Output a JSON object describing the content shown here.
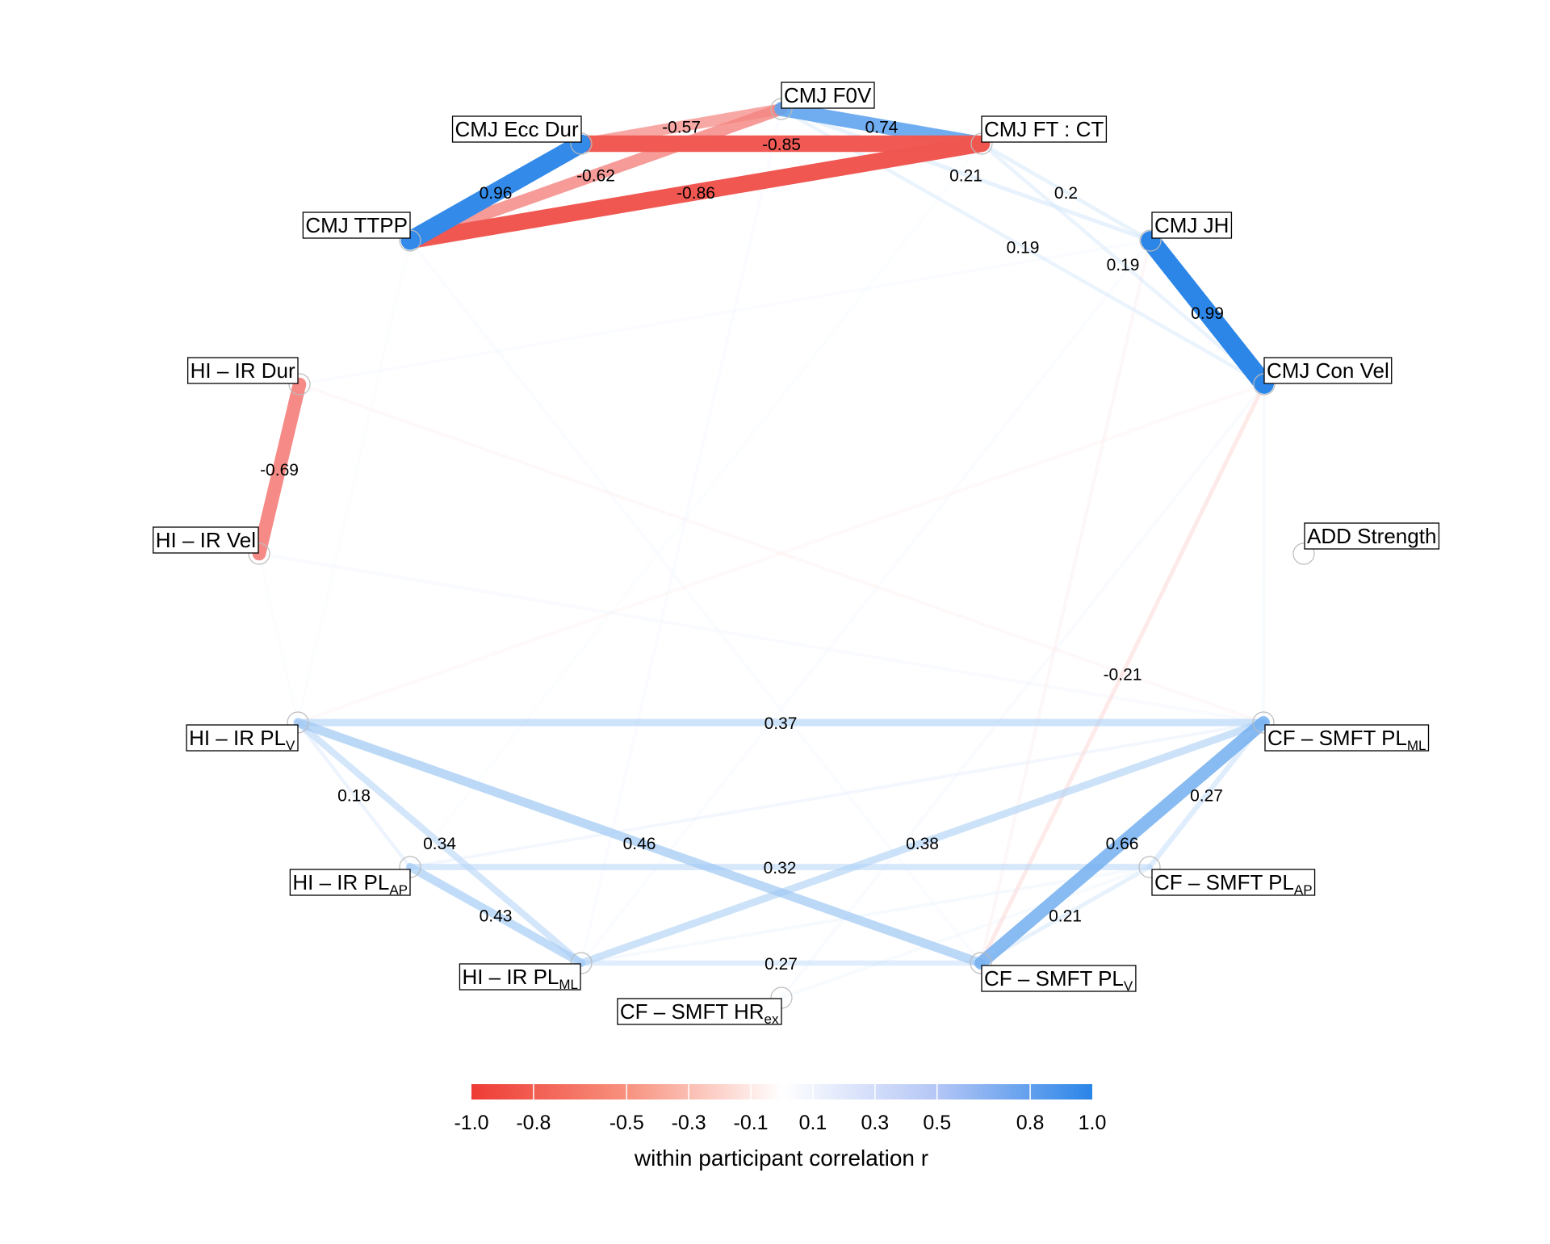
{
  "chart_data": {
    "type": "network",
    "title": "",
    "legend": {
      "title": "within participant correlation r",
      "ticks": [
        "-1.0",
        "-0.8",
        "-0.5",
        "-0.3",
        "-0.1",
        "0.1",
        "0.3",
        "0.5",
        "0.8",
        "1.0"
      ],
      "range": [
        -1,
        1
      ],
      "placement": "bottom",
      "colors": {
        "negative": "#EE3B34",
        "zero": "#FFFFFF",
        "positive": "#2A85E8"
      }
    },
    "nodes": [
      {
        "id": "f0v",
        "name": "CMJ F0V",
        "sub": ""
      },
      {
        "id": "ftct",
        "name": "CMJ FT : CT",
        "sub": ""
      },
      {
        "id": "eccdur",
        "name": "CMJ Ecc Dur",
        "sub": ""
      },
      {
        "id": "ttpp",
        "name": "CMJ TTPP",
        "sub": ""
      },
      {
        "id": "jh",
        "name": "CMJ JH",
        "sub": ""
      },
      {
        "id": "convel",
        "name": "CMJ Con Vel",
        "sub": ""
      },
      {
        "id": "hidur",
        "name": "HI – IR Dur",
        "sub": ""
      },
      {
        "id": "hivel",
        "name": "HI – IR Vel",
        "sub": ""
      },
      {
        "id": "add",
        "name": "ADD Strength",
        "sub": ""
      },
      {
        "id": "hiplv",
        "name": "HI – IR PL",
        "sub": "V"
      },
      {
        "id": "cfplml",
        "name": "CF – SMFT PL",
        "sub": "ML"
      },
      {
        "id": "hiplap",
        "name": "HI – IR PL",
        "sub": "AP"
      },
      {
        "id": "cfplap",
        "name": "CF – SMFT PL",
        "sub": "AP"
      },
      {
        "id": "hiplml",
        "name": "HI – IR PL",
        "sub": "ML"
      },
      {
        "id": "cfplv",
        "name": "CF – SMFT PL",
        "sub": "V"
      },
      {
        "id": "hrex",
        "name": "CF – SMFT HR",
        "sub": "ex"
      }
    ],
    "edges": [
      {
        "from": "eccdur",
        "to": "ttpp",
        "r": 0.96,
        "label": "0.96"
      },
      {
        "from": "f0v",
        "to": "eccdur",
        "r": -0.57,
        "label": "-0.57"
      },
      {
        "from": "f0v",
        "to": "ftct",
        "r": 0.74,
        "label": "0.74"
      },
      {
        "from": "ftct",
        "to": "eccdur",
        "r": -0.85,
        "label": "-0.85"
      },
      {
        "from": "f0v",
        "to": "ttpp",
        "r": -0.62,
        "label": "-0.62"
      },
      {
        "from": "ftct",
        "to": "ttpp",
        "r": -0.86,
        "label": "-0.86"
      },
      {
        "from": "jh",
        "to": "convel",
        "r": 0.99,
        "label": "0.99"
      },
      {
        "from": "hidur",
        "to": "hivel",
        "r": -0.69,
        "label": "-0.69"
      },
      {
        "from": "f0v",
        "to": "jh",
        "r": 0.21,
        "label": "0.21"
      },
      {
        "from": "ftct",
        "to": "jh",
        "r": 0.2,
        "label": "0.2"
      },
      {
        "from": "f0v",
        "to": "convel",
        "r": 0.19,
        "label": "0.19"
      },
      {
        "from": "ftct",
        "to": "convel",
        "r": 0.19,
        "label": "0.19"
      },
      {
        "from": "convel",
        "to": "cfplv",
        "r": -0.21,
        "label": "-0.21"
      },
      {
        "from": "hiplv",
        "to": "cfplml",
        "r": 0.37,
        "label": "0.37"
      },
      {
        "from": "hiplv",
        "to": "hiplap",
        "r": 0.18,
        "label": "0.18"
      },
      {
        "from": "hiplv",
        "to": "hiplml",
        "r": 0.34,
        "label": "0.34"
      },
      {
        "from": "hiplap",
        "to": "hiplml",
        "r": 0.43,
        "label": "0.43"
      },
      {
        "from": "hiplv",
        "to": "cfplv",
        "r": 0.46,
        "label": "0.46"
      },
      {
        "from": "hiplap",
        "to": "cfplap",
        "r": 0.32,
        "label": "0.32"
      },
      {
        "from": "hiplml",
        "to": "cfplml",
        "r": 0.38,
        "label": "0.38"
      },
      {
        "from": "hiplml",
        "to": "cfplv",
        "r": 0.27,
        "label": "0.27"
      },
      {
        "from": "cfplml",
        "to": "cfplap",
        "r": 0.27,
        "label": "0.27"
      },
      {
        "from": "cfplml",
        "to": "cfplv",
        "r": 0.66,
        "label": "0.66"
      },
      {
        "from": "cfplap",
        "to": "cfplv",
        "r": 0.21,
        "label": "0.21"
      },
      {
        "from": "jh",
        "to": "cfplv",
        "r": -0.1,
        "label": ""
      },
      {
        "from": "hidur",
        "to": "cfplml",
        "r": -0.08,
        "label": ""
      },
      {
        "from": "convel",
        "to": "hiplv",
        "r": -0.07,
        "label": ""
      },
      {
        "from": "ttpp",
        "to": "cfplv",
        "r": 0.06,
        "label": ""
      },
      {
        "from": "hivel",
        "to": "cfplml",
        "r": 0.07,
        "label": ""
      },
      {
        "from": "hidur",
        "to": "jh",
        "r": 0.06,
        "label": ""
      },
      {
        "from": "f0v",
        "to": "hiplml",
        "r": 0.06,
        "label": ""
      },
      {
        "from": "ftct",
        "to": "hiplap",
        "r": 0.05,
        "label": ""
      },
      {
        "from": "jh",
        "to": "hiplml",
        "r": 0.06,
        "label": ""
      },
      {
        "from": "convel",
        "to": "hrex",
        "r": 0.07,
        "label": ""
      },
      {
        "from": "hrex",
        "to": "cfplap",
        "r": 0.08,
        "label": ""
      },
      {
        "from": "hiplap",
        "to": "cfplml",
        "r": 0.12,
        "label": ""
      },
      {
        "from": "hiplml",
        "to": "cfplap",
        "r": 0.1,
        "label": ""
      },
      {
        "from": "convel",
        "to": "cfplml",
        "r": 0.08,
        "label": ""
      },
      {
        "from": "ttpp",
        "to": "hiplv",
        "r": 0.05,
        "label": ""
      },
      {
        "from": "hivel",
        "to": "hiplv",
        "r": 0.05,
        "label": ""
      }
    ]
  }
}
